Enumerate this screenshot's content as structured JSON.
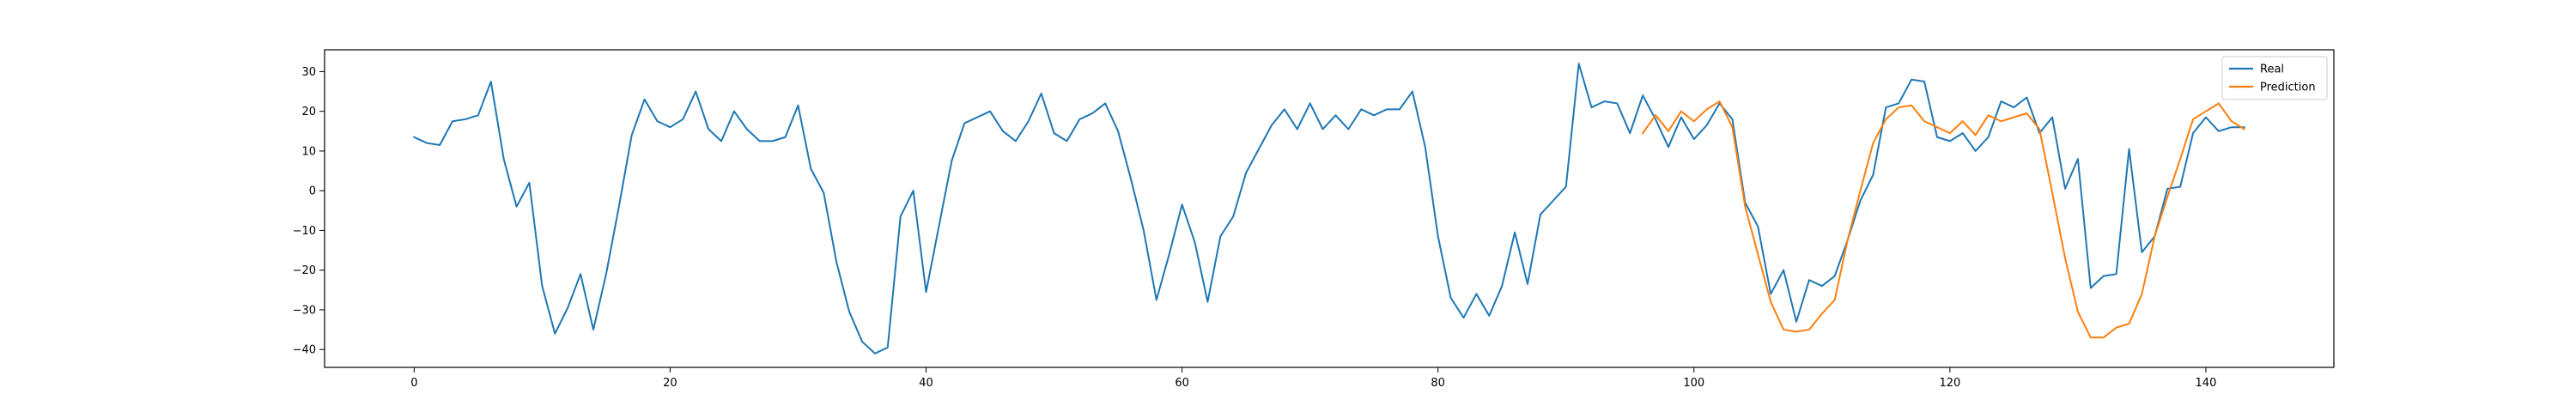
{
  "chart_data": {
    "type": "line",
    "title": "",
    "xlabel": "",
    "ylabel": "",
    "xlim": [
      -7,
      150
    ],
    "ylim": [
      -44.5,
      35.5
    ],
    "grid": false,
    "legend_position": "top-right",
    "xticks": [
      0,
      20,
      40,
      60,
      80,
      100,
      120,
      140
    ],
    "yticks": [
      -40,
      -30,
      -20,
      -10,
      0,
      10,
      20,
      30
    ],
    "series": [
      {
        "name": "Real",
        "color": "#1f77b4",
        "x_start": 0,
        "values": [
          13.5,
          12,
          11.5,
          17.5,
          18,
          19,
          27.5,
          8,
          -4,
          2,
          -24,
          -36,
          -29.5,
          -21,
          -35,
          -21,
          -4,
          14,
          23,
          17.5,
          16,
          18,
          25,
          15.5,
          12.5,
          20,
          15.5,
          12.5,
          12.5,
          13.5,
          21.5,
          5.5,
          -0.5,
          -18,
          -30.5,
          -38,
          -41,
          -39.5,
          -6.5,
          0,
          -25.5,
          -9,
          7.5,
          17,
          18.5,
          20,
          15,
          12.5,
          17.5,
          24.5,
          14.5,
          12.5,
          18,
          19.5,
          22,
          15,
          3,
          -10,
          -27.5,
          -16,
          -3.5,
          -13,
          -28,
          -11.5,
          -6.5,
          4.5,
          10.5,
          16.5,
          20.5,
          15.5,
          22,
          15.5,
          19,
          15.5,
          20.5,
          19,
          20.5,
          20.5,
          25,
          11,
          -11.5,
          -27,
          -32,
          -26,
          -31.5,
          -24,
          -10.5,
          -23.5,
          -6,
          -2.5,
          1,
          32,
          21,
          22.5,
          22,
          14.5,
          24,
          18,
          11,
          18.5,
          13,
          16.5,
          22,
          18,
          -3,
          -9,
          -26,
          -20,
          -33,
          -22.5,
          -24,
          -21.5,
          -12.5,
          -2.5,
          4,
          21,
          22,
          28,
          27.5,
          13.5,
          12.5,
          14.5,
          10,
          13.5,
          22.5,
          21,
          23.5,
          14.5,
          18.5,
          0.5,
          8,
          -24.5,
          -21.5,
          -21,
          10.5,
          -15.5,
          -11.5,
          0.5,
          1,
          14.5,
          18.5,
          15,
          16,
          16
        ]
      },
      {
        "name": "Prediction",
        "color": "#ff7f0e",
        "x_start": 96,
        "values": [
          14.5,
          19,
          15,
          20,
          17.5,
          20.5,
          22.5,
          16,
          -4,
          -16,
          -28,
          -35,
          -35.5,
          -35,
          -31,
          -27.5,
          -12.5,
          0,
          12,
          18,
          21,
          21.5,
          17.5,
          16,
          14.5,
          17.5,
          14,
          19,
          17.5,
          18.5,
          19.5,
          15.5,
          -0.5,
          -17,
          -30.5,
          -37,
          -37,
          -34.5,
          -33.5,
          -26,
          -11.5,
          -1.5,
          8,
          18,
          20,
          22,
          17.5,
          15.5
        ]
      }
    ]
  }
}
